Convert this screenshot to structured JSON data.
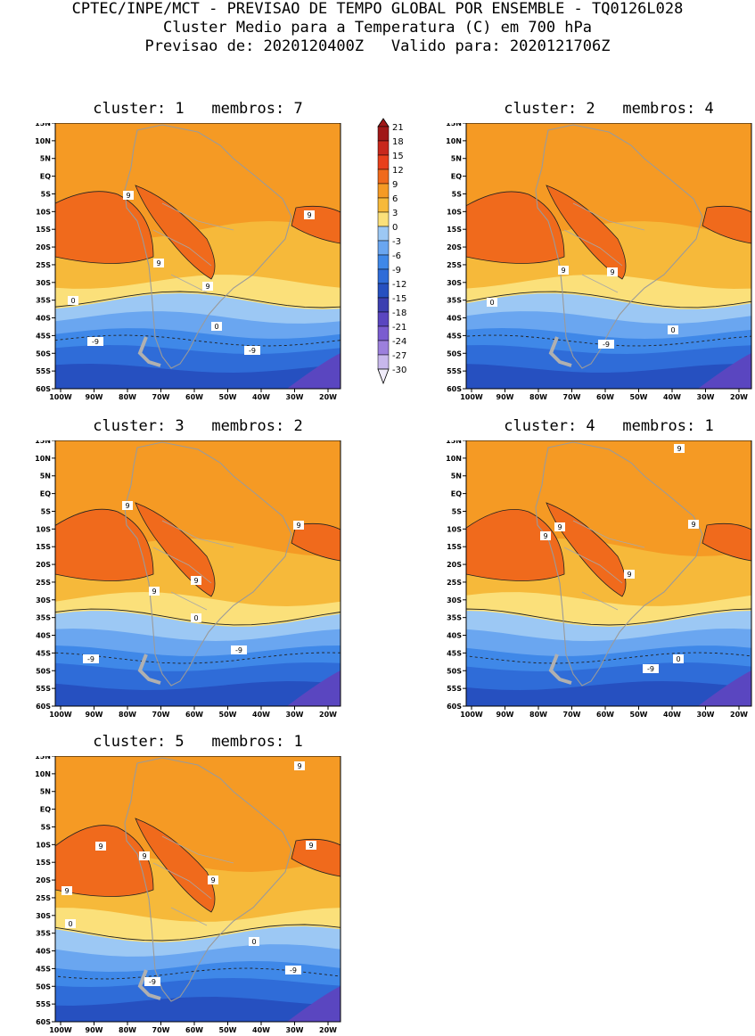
{
  "header": {
    "line1": "CPTEC/INPE/MCT - PREVISAO DE TEMPO GLOBAL POR ENSEMBLE - TQ0126L028",
    "line2": "Cluster Medio para a Temperatura (C) em 700 hPa",
    "line3_left": "Previsao de: 2020120400Z",
    "line3_right": "Valido para: 2020121706Z"
  },
  "panels": [
    {
      "title": "cluster: 1   membros: 7",
      "labels": [
        "9",
        "9",
        "9",
        "9",
        "0",
        "0",
        "-9",
        "-9"
      ]
    },
    {
      "title": "cluster: 2   membros: 4",
      "labels": [
        "9",
        "9",
        "0",
        "0",
        "-9"
      ]
    },
    {
      "title": "cluster: 3   membros: 2",
      "labels": [
        "9",
        "9",
        "9",
        "9",
        "0",
        "-9",
        "-9"
      ]
    },
    {
      "title": "cluster: 4   membros: 1",
      "labels": [
        "9",
        "9",
        "9",
        "9",
        "9",
        "0",
        "-9"
      ]
    },
    {
      "title": "cluster: 5   membros: 1",
      "labels": [
        "9",
        "9",
        "9",
        "9",
        "9",
        "9",
        "0",
        "0",
        "-9",
        "-9"
      ]
    }
  ],
  "lat_ticks": [
    "15N",
    "10N",
    "5N",
    "EQ",
    "5S",
    "10S",
    "15S",
    "20S",
    "25S",
    "30S",
    "35S",
    "40S",
    "45S",
    "50S",
    "55S",
    "60S"
  ],
  "lon_ticks": [
    "100W",
    "90W",
    "80W",
    "70W",
    "60W",
    "50W",
    "40W",
    "30W",
    "20W"
  ],
  "legend": {
    "levels": [
      "21",
      "18",
      "15",
      "12",
      "9",
      "6",
      "3",
      "0",
      "-3",
      "-6",
      "-9",
      "-12",
      "-15",
      "-18",
      "-21",
      "-24",
      "-27",
      "-30"
    ],
    "colors": [
      "#a01818",
      "#c8281c",
      "#e8401c",
      "#f06a1c",
      "#f59a24",
      "#f6b93a",
      "#fbe07a",
      "#9cc8f4",
      "#6aa6f0",
      "#3f88e8",
      "#2f6cd8",
      "#2650c0",
      "#3c3fb0",
      "#5a46c0",
      "#7a5cd0",
      "#9c80dc",
      "#c8b8ec",
      "#f0ecfa"
    ]
  },
  "colors": {
    "warm_deep": "#f06a1c",
    "warm": "#f59a24",
    "warm_light": "#f6b93a",
    "pale": "#fbe07a",
    "cool_light": "#9cc8f4",
    "cool": "#6aa6f0",
    "cool_mid": "#3f88e8",
    "cool_deep": "#2f6cd8",
    "cool_navy": "#2650c0",
    "purple": "#5a46c0"
  }
}
